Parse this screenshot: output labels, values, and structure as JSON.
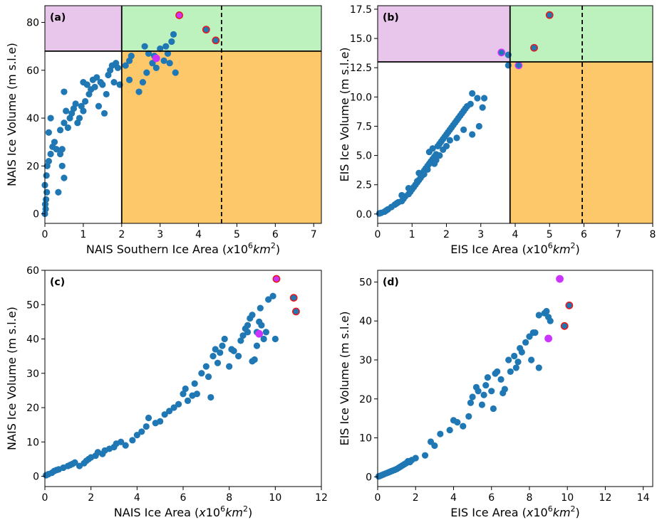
{
  "colors": {
    "point": "#1f77b4",
    "region_purple": "#e8c5ea",
    "region_green": "#bdf2be",
    "region_orange": "#fdc86a",
    "highlight_red": "#e41a1c",
    "highlight_magenta": "#cc33ff"
  },
  "chart_data": [
    {
      "type": "scatter",
      "panel_label": "(a)",
      "xlabel": "NAIS Southern Ice Area",
      "ylabel": "NAIS Ice Volume (m s.l.e)",
      "xlim": [
        0,
        7.2
      ],
      "ylim": [
        -4,
        87
      ],
      "xticks": [
        0,
        1,
        2,
        3,
        4,
        5,
        6,
        7
      ],
      "yticks": [
        0,
        20,
        40,
        60,
        80
      ],
      "ytick_decimals": 0,
      "threshold_x": 2.0,
      "threshold_y": 68.0,
      "dashed_x": 4.6,
      "points": [
        [
          0.0,
          0.0
        ],
        [
          0.02,
          2.0
        ],
        [
          0.01,
          4.0
        ],
        [
          0.03,
          6.0
        ],
        [
          0.05,
          9.0
        ],
        [
          0.0,
          12.0
        ],
        [
          0.04,
          16.0
        ],
        [
          0.06,
          20.0
        ],
        [
          0.1,
          22.0
        ],
        [
          0.15,
          25.0
        ],
        [
          0.2,
          28.0
        ],
        [
          0.3,
          27.0
        ],
        [
          0.35,
          9.0
        ],
        [
          0.1,
          34.0
        ],
        [
          0.15,
          40.0
        ],
        [
          0.25,
          30.0
        ],
        [
          0.4,
          25.0
        ],
        [
          0.45,
          20.0
        ],
        [
          0.5,
          15.0
        ],
        [
          0.45,
          27.0
        ],
        [
          0.4,
          35.0
        ],
        [
          0.5,
          38.0
        ],
        [
          0.55,
          43.0
        ],
        [
          0.5,
          51.0
        ],
        [
          0.6,
          36.0
        ],
        [
          0.65,
          40.0
        ],
        [
          0.7,
          42.0
        ],
        [
          0.75,
          44.0
        ],
        [
          0.8,
          46.0
        ],
        [
          0.85,
          38.0
        ],
        [
          0.9,
          40.0
        ],
        [
          0.95,
          45.0
        ],
        [
          1.0,
          43.0
        ],
        [
          1.05,
          47.0
        ],
        [
          1.0,
          55.0
        ],
        [
          1.1,
          54.0
        ],
        [
          1.15,
          50.0
        ],
        [
          1.2,
          52.0
        ],
        [
          1.25,
          56.0
        ],
        [
          1.3,
          53.0
        ],
        [
          1.35,
          57.0
        ],
        [
          1.4,
          45.0
        ],
        [
          1.45,
          55.0
        ],
        [
          1.5,
          54.0
        ],
        [
          1.55,
          42.0
        ],
        [
          1.6,
          50.0
        ],
        [
          1.65,
          58.0
        ],
        [
          1.7,
          60.0
        ],
        [
          1.75,
          62.0
        ],
        [
          1.8,
          55.0
        ],
        [
          1.85,
          63.0
        ],
        [
          1.9,
          61.0
        ],
        [
          1.95,
          54.0
        ],
        [
          2.1,
          62.0
        ],
        [
          2.2,
          64.0
        ],
        [
          2.25,
          66.0
        ],
        [
          2.2,
          56.0
        ],
        [
          2.45,
          51.0
        ],
        [
          2.55,
          55.0
        ],
        [
          2.65,
          59.0
        ],
        [
          2.7,
          67.0
        ],
        [
          2.8,
          63.0
        ],
        [
          2.9,
          61.0
        ],
        [
          3.0,
          69.0
        ],
        [
          3.1,
          64.0
        ],
        [
          3.15,
          70.0
        ],
        [
          3.2,
          67.0
        ],
        [
          3.25,
          63.0
        ],
        [
          3.3,
          72.0
        ],
        [
          3.35,
          75.0
        ],
        [
          3.4,
          59.0
        ],
        [
          2.6,
          70.0
        ],
        [
          2.85,
          66.0
        ]
      ],
      "highlighted": [
        {
          "x": 3.5,
          "y": 83.0,
          "edge": "red",
          "fill": "magenta"
        },
        {
          "x": 4.2,
          "y": 77.0,
          "edge": "red",
          "fill": "point"
        },
        {
          "x": 4.45,
          "y": 72.5,
          "edge": "red",
          "fill": "point"
        },
        {
          "x": 2.9,
          "y": 65.0,
          "edge": "magenta",
          "fill": "magenta"
        }
      ]
    },
    {
      "type": "scatter",
      "panel_label": "(b)",
      "xlabel": "EIS Ice Area",
      "ylabel": "EIS Ice Volume (m s.l.e)",
      "xlim": [
        0,
        8
      ],
      "ylim": [
        -0.8,
        17.8
      ],
      "xticks": [
        0,
        1,
        2,
        3,
        4,
        5,
        6,
        7,
        8
      ],
      "yticks": [
        0.0,
        2.5,
        5.0,
        7.5,
        10.0,
        12.5,
        15.0,
        17.5
      ],
      "ytick_decimals": 1,
      "threshold_x": 3.85,
      "threshold_y": 13.0,
      "dashed_x": 5.95,
      "points": [
        [
          0.05,
          0.05
        ],
        [
          0.1,
          0.1
        ],
        [
          0.2,
          0.2
        ],
        [
          0.25,
          0.3
        ],
        [
          0.3,
          0.4
        ],
        [
          0.4,
          0.6
        ],
        [
          0.5,
          0.8
        ],
        [
          0.55,
          0.9
        ],
        [
          0.6,
          1.0
        ],
        [
          0.7,
          1.1
        ],
        [
          0.75,
          1.3
        ],
        [
          0.8,
          1.5
        ],
        [
          0.9,
          1.7
        ],
        [
          0.95,
          1.9
        ],
        [
          1.0,
          2.1
        ],
        [
          1.05,
          2.3
        ],
        [
          1.1,
          2.5
        ],
        [
          1.15,
          2.7
        ],
        [
          1.2,
          2.9
        ],
        [
          1.25,
          3.1
        ],
        [
          1.3,
          3.3
        ],
        [
          1.2,
          3.5
        ],
        [
          1.35,
          3.7
        ],
        [
          1.4,
          3.9
        ],
        [
          1.45,
          4.1
        ],
        [
          1.5,
          4.3
        ],
        [
          1.55,
          4.5
        ],
        [
          1.6,
          4.7
        ],
        [
          1.65,
          4.9
        ],
        [
          1.7,
          5.1
        ],
        [
          1.5,
          5.3
        ],
        [
          1.6,
          5.6
        ],
        [
          1.75,
          5.8
        ],
        [
          1.8,
          6.0
        ],
        [
          1.85,
          6.2
        ],
        [
          1.9,
          6.4
        ],
        [
          1.95,
          6.6
        ],
        [
          2.0,
          6.8
        ],
        [
          2.05,
          7.0
        ],
        [
          2.1,
          7.2
        ],
        [
          2.15,
          7.4
        ],
        [
          2.2,
          7.6
        ],
        [
          2.25,
          7.8
        ],
        [
          2.3,
          8.0
        ],
        [
          2.35,
          8.2
        ],
        [
          2.4,
          8.4
        ],
        [
          2.45,
          8.6
        ],
        [
          2.5,
          8.8
        ],
        [
          2.55,
          9.0
        ],
        [
          2.6,
          9.2
        ],
        [
          2.7,
          9.4
        ],
        [
          2.75,
          10.3
        ],
        [
          2.9,
          9.9
        ],
        [
          3.1,
          9.9
        ],
        [
          3.05,
          9.1
        ],
        [
          2.95,
          7.5
        ],
        [
          2.75,
          6.8
        ],
        [
          2.5,
          7.2
        ],
        [
          2.3,
          6.5
        ],
        [
          2.1,
          6.3
        ],
        [
          2.0,
          5.8
        ],
        [
          1.9,
          5.5
        ],
        [
          1.8,
          5.0
        ],
        [
          1.7,
          4.6
        ],
        [
          1.65,
          4.3
        ],
        [
          1.45,
          3.8
        ],
        [
          1.35,
          3.4
        ],
        [
          1.15,
          2.8
        ],
        [
          0.9,
          2.2
        ],
        [
          0.7,
          1.6
        ],
        [
          3.8,
          12.7
        ],
        [
          3.8,
          13.6
        ]
      ],
      "highlighted": [
        {
          "x": 5.0,
          "y": 17.0,
          "edge": "red",
          "fill": "point"
        },
        {
          "x": 4.55,
          "y": 14.2,
          "edge": "red",
          "fill": "point"
        },
        {
          "x": 3.6,
          "y": 13.8,
          "edge": "magenta",
          "fill": "point"
        },
        {
          "x": 4.1,
          "y": 12.7,
          "edge": "magenta",
          "fill": "point"
        }
      ]
    },
    {
      "type": "scatter",
      "panel_label": "(c)",
      "xlabel": "NAIS Ice Area",
      "ylabel": "NAIS Ice Volume (m s.l.e)",
      "xlim": [
        0,
        12
      ],
      "ylim": [
        -3,
        60
      ],
      "xticks": [
        0,
        2,
        4,
        6,
        8,
        10,
        12
      ],
      "yticks": [
        0,
        10,
        20,
        30,
        40,
        50,
        60
      ],
      "ytick_decimals": 0,
      "threshold_x": null,
      "threshold_y": null,
      "dashed_x": null,
      "points": [
        [
          0.05,
          0.3
        ],
        [
          0.15,
          0.6
        ],
        [
          0.3,
          1.0
        ],
        [
          0.4,
          1.5
        ],
        [
          0.5,
          1.8
        ],
        [
          0.6,
          2.0
        ],
        [
          0.8,
          2.5
        ],
        [
          1.0,
          3.0
        ],
        [
          1.1,
          3.3
        ],
        [
          1.2,
          3.6
        ],
        [
          1.3,
          4.0
        ],
        [
          1.5,
          3.0
        ],
        [
          1.7,
          3.8
        ],
        [
          1.8,
          4.5
        ],
        [
          1.9,
          5.0
        ],
        [
          2.0,
          5.5
        ],
        [
          2.2,
          6.0
        ],
        [
          2.3,
          7.0
        ],
        [
          2.5,
          6.5
        ],
        [
          2.6,
          7.5
        ],
        [
          2.8,
          8.0
        ],
        [
          3.0,
          8.5
        ],
        [
          3.1,
          9.5
        ],
        [
          3.3,
          10.0
        ],
        [
          3.5,
          9.0
        ],
        [
          3.8,
          10.5
        ],
        [
          4.0,
          12.0
        ],
        [
          4.2,
          13.0
        ],
        [
          4.4,
          14.5
        ],
        [
          4.5,
          17.0
        ],
        [
          4.8,
          15.5
        ],
        [
          5.0,
          16.0
        ],
        [
          5.2,
          18.0
        ],
        [
          5.4,
          19.0
        ],
        [
          5.6,
          20.0
        ],
        [
          5.8,
          21.0
        ],
        [
          6.0,
          24.0
        ],
        [
          6.1,
          25.5
        ],
        [
          6.2,
          22.0
        ],
        [
          6.4,
          23.5
        ],
        [
          6.5,
          27.0
        ],
        [
          6.6,
          24.0
        ],
        [
          6.8,
          30.0
        ],
        [
          7.0,
          32.0
        ],
        [
          7.1,
          29.0
        ],
        [
          7.2,
          23.0
        ],
        [
          7.3,
          35.0
        ],
        [
          7.4,
          37.0
        ],
        [
          7.5,
          33.0
        ],
        [
          7.6,
          36.0
        ],
        [
          7.7,
          38.0
        ],
        [
          7.8,
          40.0
        ],
        [
          8.0,
          32.0
        ],
        [
          8.1,
          37.0
        ],
        [
          8.2,
          36.5
        ],
        [
          8.4,
          35.0
        ],
        [
          8.5,
          39.5
        ],
        [
          8.6,
          41.0
        ],
        [
          8.7,
          43.0
        ],
        [
          8.8,
          44.0
        ],
        [
          8.9,
          46.0
        ],
        [
          9.0,
          47.0
        ],
        [
          9.0,
          33.5
        ],
        [
          9.1,
          34.0
        ],
        [
          9.2,
          42.0
        ],
        [
          9.3,
          45.0
        ],
        [
          9.35,
          49.0
        ],
        [
          9.4,
          44.0
        ],
        [
          9.5,
          40.0
        ],
        [
          9.6,
          42.0
        ],
        [
          9.7,
          51.5
        ],
        [
          9.9,
          52.5
        ],
        [
          10.0,
          40.0
        ],
        [
          9.2,
          38.0
        ],
        [
          8.8,
          42.0
        ]
      ],
      "highlighted": [
        {
          "x": 10.05,
          "y": 57.5,
          "edge": "red",
          "fill": "magenta"
        },
        {
          "x": 10.8,
          "y": 52.0,
          "edge": "red",
          "fill": "point"
        },
        {
          "x": 10.9,
          "y": 48.0,
          "edge": "red",
          "fill": "point"
        },
        {
          "x": 9.3,
          "y": 41.5,
          "edge": "magenta",
          "fill": "magenta"
        }
      ]
    },
    {
      "type": "scatter",
      "panel_label": "(d)",
      "xlabel": "EIS Ice Area",
      "ylabel": "EIS Ice Volume (m s.l.e)",
      "xlim": [
        0,
        14.5
      ],
      "ylim": [
        -2.5,
        53
      ],
      "xticks": [
        0,
        2,
        4,
        6,
        8,
        10,
        12,
        14
      ],
      "yticks": [
        0,
        10,
        20,
        30,
        40,
        50
      ],
      "ytick_decimals": 0,
      "threshold_x": null,
      "threshold_y": null,
      "dashed_x": null,
      "points": [
        [
          0.05,
          0.1
        ],
        [
          0.1,
          0.2
        ],
        [
          0.2,
          0.4
        ],
        [
          0.3,
          0.6
        ],
        [
          0.4,
          0.8
        ],
        [
          0.5,
          1.0
        ],
        [
          0.6,
          1.2
        ],
        [
          0.7,
          1.4
        ],
        [
          0.8,
          1.6
        ],
        [
          0.9,
          1.8
        ],
        [
          1.0,
          2.0
        ],
        [
          1.1,
          2.3
        ],
        [
          1.2,
          2.6
        ],
        [
          1.3,
          2.9
        ],
        [
          1.4,
          3.2
        ],
        [
          1.5,
          3.5
        ],
        [
          1.6,
          4.0
        ],
        [
          1.7,
          3.8
        ],
        [
          1.8,
          4.3
        ],
        [
          2.0,
          4.8
        ],
        [
          2.5,
          5.5
        ],
        [
          2.8,
          9.0
        ],
        [
          3.0,
          8.0
        ],
        [
          3.3,
          11.0
        ],
        [
          3.8,
          12.0
        ],
        [
          4.0,
          14.5
        ],
        [
          4.2,
          14.0
        ],
        [
          4.5,
          13.0
        ],
        [
          4.8,
          15.5
        ],
        [
          4.9,
          19.0
        ],
        [
          5.0,
          20.5
        ],
        [
          5.2,
          23.0
        ],
        [
          5.3,
          22.0
        ],
        [
          5.5,
          18.5
        ],
        [
          5.6,
          21.0
        ],
        [
          5.7,
          23.5
        ],
        [
          5.8,
          25.5
        ],
        [
          6.0,
          22.0
        ],
        [
          6.1,
          17.5
        ],
        [
          6.2,
          26.5
        ],
        [
          6.3,
          27.0
        ],
        [
          6.5,
          25.0
        ],
        [
          6.7,
          22.5
        ],
        [
          6.9,
          30.0
        ],
        [
          7.0,
          27.0
        ],
        [
          7.2,
          31.0
        ],
        [
          7.3,
          28.0
        ],
        [
          7.5,
          33.0
        ],
        [
          7.6,
          32.0
        ],
        [
          7.8,
          34.5
        ],
        [
          8.0,
          36.0
        ],
        [
          8.1,
          30.0
        ],
        [
          8.2,
          37.0
        ],
        [
          8.3,
          37.0
        ],
        [
          8.5,
          28.0
        ],
        [
          8.5,
          41.5
        ],
        [
          8.8,
          42.0
        ],
        [
          8.9,
          42.5
        ],
        [
          9.0,
          41.0
        ],
        [
          9.1,
          40.0
        ],
        [
          6.6,
          21.5
        ],
        [
          7.4,
          29.5
        ]
      ],
      "highlighted": [
        {
          "x": 9.6,
          "y": 50.8,
          "edge": "magenta",
          "fill": "magenta"
        },
        {
          "x": 10.1,
          "y": 44.0,
          "edge": "red",
          "fill": "point"
        },
        {
          "x": 9.85,
          "y": 38.7,
          "edge": "red",
          "fill": "point"
        },
        {
          "x": 9.0,
          "y": 35.5,
          "edge": "magenta",
          "fill": "magenta"
        }
      ]
    }
  ]
}
